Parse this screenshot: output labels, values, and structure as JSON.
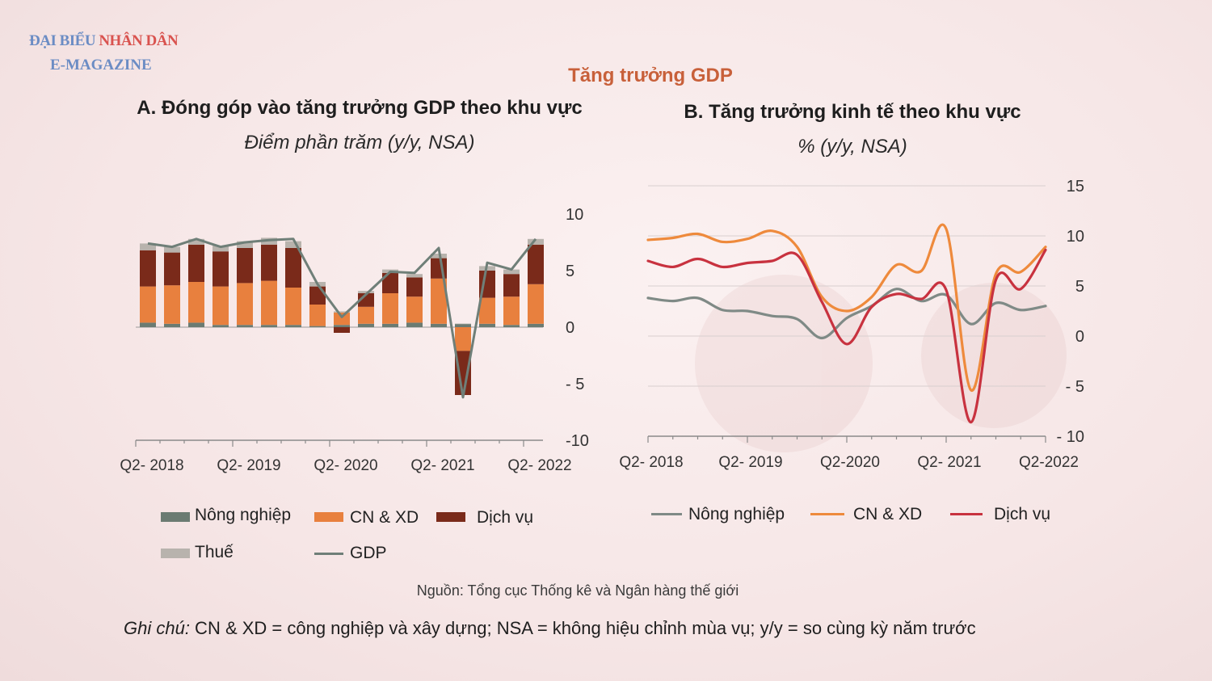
{
  "header": {
    "logo_line1_a": "ĐẠI BIỂU",
    "logo_line1_b": "NHÂN DÂN",
    "logo_line2": "E-MAGAZINE",
    "main_title": "Tăng trưởng GDP"
  },
  "panel_a": {
    "title": "A. Đóng góp vào tăng trưởng GDP theo khu vực",
    "subtitle": "Điểm phần trăm (y/y, NSA)"
  },
  "panel_b": {
    "title": "B. Tăng trưởng kinh tế theo khu vực",
    "subtitle": "% (y/y, NSA)"
  },
  "footer": {
    "source": "Nguồn: Tổng cục Thống kê và Ngân hàng thế giới",
    "note_label": "Ghi chú:",
    "note_text": " CN & XD = công nghiệp và xây dựng; NSA = không hiệu chỉnh mùa vụ; y/y = so cùng kỳ năm trước"
  },
  "colors": {
    "agri": "#6b7b72",
    "industry": "#e8803e",
    "services": "#7a2a1a",
    "tax": "#b8b3ad",
    "gdp": "#6f7f78",
    "line_agri": "#7f8a86",
    "line_industry": "#ee8a3c",
    "line_services": "#c8323f"
  },
  "chart_data": [
    {
      "type": "bar",
      "stacked": true,
      "title": "A. Đóng góp vào tăng trưởng GDP theo khu vực",
      "ylabel": "Điểm phần trăm (y/y, NSA)",
      "ylim": [
        -10,
        10
      ],
      "yticks": [
        "10",
        "5",
        "0",
        "- 5",
        "-10"
      ],
      "ytick_values": [
        10,
        5,
        0,
        -5,
        -10
      ],
      "xtick_labels": [
        "Q2- 2018",
        "Q2- 2019",
        "Q2- 2020",
        "Q2- 2021",
        "Q2- 2022"
      ],
      "xtick_index": [
        0,
        4,
        8,
        12,
        16
      ],
      "categories": [
        "Q2-2018",
        "Q3-2018",
        "Q4-2018",
        "Q1-2019",
        "Q2-2019",
        "Q3-2019",
        "Q4-2019",
        "Q1-2020",
        "Q2-2020",
        "Q3-2020",
        "Q4-2020",
        "Q1-2021",
        "Q2-2021",
        "Q3-2021",
        "Q4-2021",
        "Q1-2022",
        "Q2-2022"
      ],
      "series": [
        {
          "name": "Nông nghiệp",
          "values": [
            0.4,
            0.3,
            0.4,
            0.2,
            0.2,
            0.2,
            0.2,
            0.1,
            0.2,
            0.3,
            0.3,
            0.4,
            0.3,
            0.3,
            0.3,
            0.2,
            0.3
          ]
        },
        {
          "name": "CN & XD",
          "values": [
            3.2,
            3.4,
            3.6,
            3.4,
            3.7,
            3.9,
            3.3,
            1.9,
            1.1,
            1.5,
            2.7,
            2.3,
            4.0,
            -2.1,
            2.3,
            2.5,
            3.5
          ]
        },
        {
          "name": "Dịch vụ",
          "values": [
            3.2,
            2.9,
            3.3,
            3.1,
            3.1,
            3.2,
            3.5,
            1.6,
            -0.5,
            1.2,
            1.8,
            1.7,
            1.8,
            -3.9,
            2.4,
            2.0,
            3.5
          ]
        },
        {
          "name": "Thuế",
          "values": [
            0.6,
            0.5,
            0.5,
            0.5,
            0.6,
            0.6,
            0.6,
            0.4,
            0.1,
            0.2,
            0.3,
            0.3,
            0.4,
            0.0,
            0.4,
            0.4,
            0.5
          ]
        }
      ],
      "gdp_line": {
        "name": "GDP",
        "values": [
          7.4,
          7.1,
          7.8,
          7.1,
          7.5,
          7.7,
          7.8,
          3.8,
          0.9,
          2.9,
          4.9,
          4.8,
          7.0,
          -6.2,
          5.7,
          5.1,
          7.8
        ]
      },
      "legend": [
        {
          "name": "Nông nghiệp",
          "kind": "box"
        },
        {
          "name": "CN & XD",
          "kind": "box"
        },
        {
          "name": "Dịch vụ",
          "kind": "box"
        },
        {
          "name": "Thuế",
          "kind": "box"
        },
        {
          "name": "GDP",
          "kind": "line"
        }
      ],
      "legend_position": "bottom",
      "grid": false
    },
    {
      "type": "line",
      "title": "B. Tăng trưởng kinh tế theo khu vực",
      "ylabel": "% (y/y, NSA)",
      "ylim": [
        -10,
        15
      ],
      "yticks": [
        "15",
        "10",
        "5",
        "0",
        "- 5",
        "- 10"
      ],
      "ytick_values": [
        15,
        10,
        5,
        0,
        -5,
        -10
      ],
      "xtick_labels": [
        "Q2- 2018",
        "Q2- 2019",
        "Q2-2020",
        "Q2- 2021",
        "Q2-2022"
      ],
      "xtick_index": [
        0,
        4,
        8,
        12,
        16
      ],
      "categories": [
        "Q2-2018",
        "Q3-2018",
        "Q4-2018",
        "Q1-2019",
        "Q2-2019",
        "Q3-2019",
        "Q4-2019",
        "Q1-2020",
        "Q2-2020",
        "Q3-2020",
        "Q4-2020",
        "Q1-2021",
        "Q2-2021",
        "Q3-2021",
        "Q4-2021",
        "Q1-2022",
        "Q2-2022"
      ],
      "series": [
        {
          "name": "Nông nghiệp",
          "values": [
            3.8,
            3.5,
            3.8,
            2.6,
            2.5,
            2.0,
            1.7,
            -0.2,
            1.8,
            3.0,
            4.7,
            3.5,
            4.1,
            1.2,
            3.3,
            2.6,
            3.0
          ]
        },
        {
          "name": "CN & XD",
          "values": [
            9.6,
            9.8,
            10.2,
            9.4,
            9.7,
            10.5,
            8.9,
            3.9,
            2.5,
            3.9,
            7.1,
            6.5,
            10.7,
            -5.4,
            6.2,
            6.4,
            8.9
          ]
        },
        {
          "name": "Dịch vụ",
          "values": [
            7.5,
            6.9,
            7.7,
            6.9,
            7.3,
            7.5,
            8.1,
            3.4,
            -0.8,
            2.9,
            4.2,
            3.7,
            4.6,
            -8.6,
            5.6,
            4.7,
            8.6
          ]
        }
      ],
      "legend_position": "bottom",
      "grid": true
    }
  ]
}
